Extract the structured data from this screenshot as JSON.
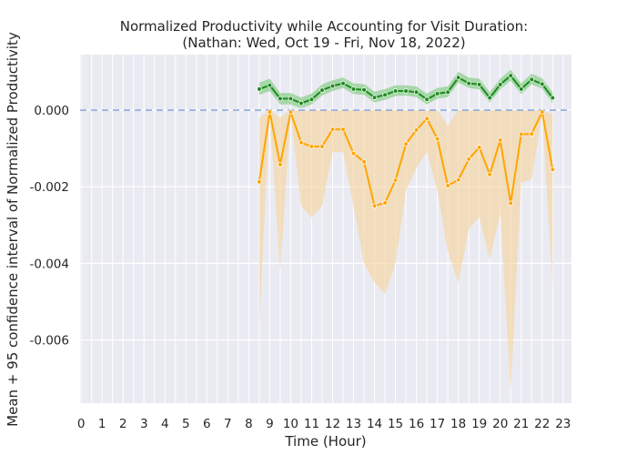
{
  "chart_data": {
    "type": "line",
    "title_line1": "Normalized Productivity while Accounting for Visit Duration:",
    "title_line2": "(Nathan: Wed, Oct 19 - Fri, Nov 18, 2022)",
    "xlabel": "Time (Hour)",
    "ylabel": "Mean + 95 confidence interval of Normalized Productivity",
    "x_ticks": [
      "0",
      "1",
      "2",
      "3",
      "4",
      "5",
      "6",
      "7",
      "8",
      "9",
      "10",
      "11",
      "12",
      "13",
      "14",
      "15",
      "16",
      "17",
      "18",
      "19",
      "20",
      "21",
      "22",
      "23"
    ],
    "y_ticks": [
      "0.000",
      "-0.002",
      "-0.004",
      "-0.006"
    ],
    "xlim": [
      -0.05,
      23.4
    ],
    "ylim": [
      -0.00765,
      0.00145
    ],
    "grid": true,
    "reference_line": {
      "y": 0.0,
      "color": "#8eaadc",
      "style": "dashed"
    },
    "colors": {
      "background": "#eaeaf2",
      "grid": "#ffffff",
      "series_green": "#1f8a1f",
      "band_green": "#8fd08f",
      "series_orange": "#ffa500",
      "band_orange": "#f5d39a"
    },
    "series": [
      {
        "color": "#1f8a1f",
        "x": [
          8.5,
          9.0,
          9.5,
          10.0,
          10.5,
          11.0,
          11.5,
          12.0,
          12.5,
          13.0,
          13.5,
          14.0,
          14.5,
          15.0,
          15.5,
          16.0,
          16.5,
          17.0,
          17.5,
          18.0,
          18.5,
          19.0,
          19.5,
          20.0,
          20.5,
          21.0,
          21.5,
          22.0,
          22.5
        ],
        "y": [
          0.00055,
          0.00065,
          0.0003,
          0.0003,
          0.00018,
          0.00028,
          0.00052,
          0.00063,
          0.0007,
          0.00055,
          0.00053,
          0.00033,
          0.0004,
          0.0005,
          0.0005,
          0.00047,
          0.00028,
          0.00043,
          0.00047,
          0.00085,
          0.0007,
          0.00067,
          0.00032,
          0.00067,
          0.0009,
          0.00055,
          0.0008,
          0.00068,
          0.00032
        ],
        "lower": [
          0.0004,
          0.0005,
          0.00015,
          0.00015,
          5e-05,
          0.00015,
          0.00038,
          0.0005,
          0.00058,
          0.00042,
          0.0004,
          0.0002,
          0.00027,
          0.00037,
          0.00038,
          0.00034,
          0.00015,
          0.0003,
          0.00034,
          0.00072,
          0.00058,
          0.00054,
          0.0002,
          0.00054,
          0.00077,
          0.00042,
          0.00067,
          0.00056,
          0.00018
        ],
        "upper": [
          0.00072,
          0.00082,
          0.00045,
          0.00045,
          0.00033,
          0.00043,
          0.00067,
          0.00078,
          0.00085,
          0.0007,
          0.00068,
          0.00048,
          0.00055,
          0.00065,
          0.00065,
          0.00062,
          0.00043,
          0.00058,
          0.00062,
          0.001,
          0.00085,
          0.00082,
          0.00047,
          0.00082,
          0.00105,
          0.0007,
          0.00095,
          0.00083,
          0.00047
        ]
      },
      {
        "color": "#ffa500",
        "x": [
          8.5,
          9.0,
          9.5,
          10.0,
          10.5,
          11.0,
          11.5,
          12.0,
          12.5,
          13.0,
          13.5,
          14.0,
          14.5,
          15.0,
          15.5,
          16.0,
          16.5,
          17.0,
          17.5,
          18.0,
          18.5,
          19.0,
          19.5,
          20.0,
          20.5,
          21.0,
          21.5,
          22.0,
          22.5
        ],
        "y": [
          -0.00187,
          -5e-05,
          -0.00142,
          -5e-05,
          -0.00085,
          -0.00095,
          -0.00095,
          -0.0005,
          -0.0005,
          -0.00113,
          -0.00135,
          -0.0025,
          -0.00242,
          -0.00183,
          -0.00088,
          -0.00052,
          -0.00022,
          -0.00075,
          -0.00197,
          -0.00182,
          -0.00128,
          -0.00097,
          -0.00168,
          -0.00078,
          -0.00243,
          -0.00063,
          -0.00062,
          -5e-05,
          -0.00155
        ],
        "lower": [
          -0.0056,
          -0.0001,
          -0.0042,
          -0.0001,
          -0.0025,
          -0.0028,
          -0.0025,
          -0.0011,
          -0.0011,
          -0.0025,
          -0.004,
          -0.0045,
          -0.0048,
          -0.004,
          -0.0021,
          -0.0015,
          -0.0011,
          -0.0021,
          -0.0037,
          -0.0045,
          -0.0031,
          -0.0028,
          -0.0039,
          -0.0027,
          -0.0073,
          -0.0019,
          -0.0018,
          -0.0001,
          -0.0046
        ],
        "upper": [
          -0.0002,
          0.0,
          -0.0002,
          0.0,
          0.0,
          0.0,
          0.0,
          0.0,
          0.0,
          0.0,
          0.0,
          0.0,
          0.0,
          0.0,
          0.0,
          0.0,
          0.0,
          0.0,
          -0.0004,
          0.0,
          0.0,
          0.0,
          0.0,
          0.0,
          0.0,
          0.0,
          0.0,
          0.0,
          -0.0001
        ]
      }
    ]
  }
}
